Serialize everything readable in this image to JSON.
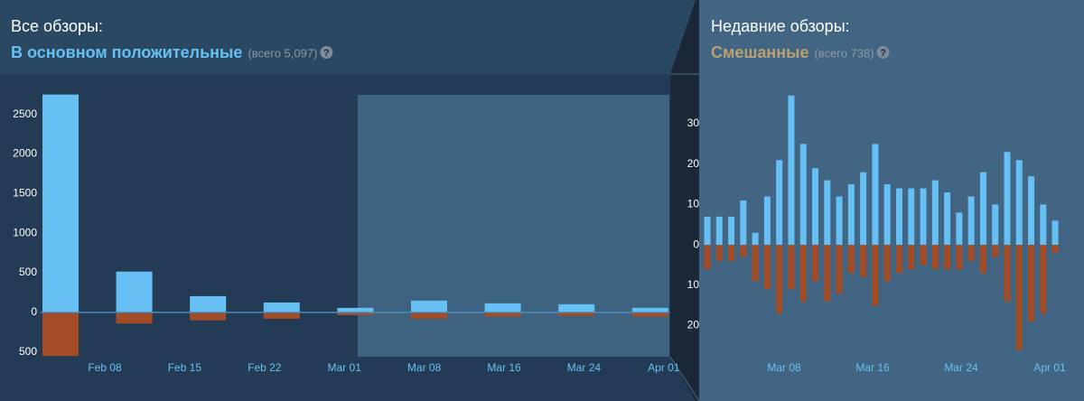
{
  "chart_data": [
    {
      "type": "bar",
      "title": "Все обзоры:",
      "subtitle": "В основном положительные",
      "total": "(всего 5,097)",
      "help": "?",
      "title_color": "#66c0f4",
      "xtick_labels": [
        "Feb 08",
        "Feb 15",
        "Feb 22",
        "Mar 01",
        "Mar 08",
        "Mar 16",
        "Mar 24",
        "Apr 01"
      ],
      "series": [
        {
          "color": "#66c0f4",
          "values": [
            2750,
            515,
            205,
            125,
            57,
            148,
            114,
            103,
            57
          ]
        },
        {
          "color": "#a34c25",
          "values": [
            -550,
            -140,
            -100,
            -80,
            -35,
            -80,
            -55,
            -45,
            -55
          ]
        }
      ],
      "ylim": [
        -560,
        2860
      ],
      "yticks": [
        2500,
        2000,
        1500,
        1000,
        500,
        0,
        {
          "value": -500,
          "label": "500"
        }
      ]
    },
    {
      "type": "bar",
      "title": "Недавние обзоры:",
      "subtitle": "Смешанные",
      "total": "(всего 738)",
      "help": "?",
      "title_color": "#b9a074",
      "xtick_labels": [
        "Mar 08",
        "Mar 16",
        "Mar 24",
        "Apr 01"
      ],
      "series": [
        {
          "color": "#66c0f4",
          "values": [
            7,
            7,
            7,
            11,
            3,
            12,
            21,
            37,
            25,
            19,
            16,
            12,
            15,
            18,
            25,
            15,
            14,
            14,
            14,
            16,
            13,
            8,
            12,
            18,
            10,
            23,
            21,
            17,
            10,
            6
          ]
        },
        {
          "color": "#a34c25",
          "values": [
            -6,
            -4,
            -4,
            -3,
            -9,
            -11,
            -17,
            -11,
            -14,
            -9,
            -14,
            -12,
            -7,
            -8,
            -15,
            -9,
            -7,
            -6,
            -5,
            -6,
            -6,
            -6,
            -4,
            -7,
            -3,
            -14,
            -26,
            -19,
            -17,
            -2
          ]
        }
      ],
      "ylim": [
        -27.7,
        39.4
      ],
      "yticks": [
        30,
        20,
        10,
        0,
        {
          "value": -10,
          "label": "10"
        },
        {
          "value": -20,
          "label": "20"
        }
      ]
    }
  ]
}
